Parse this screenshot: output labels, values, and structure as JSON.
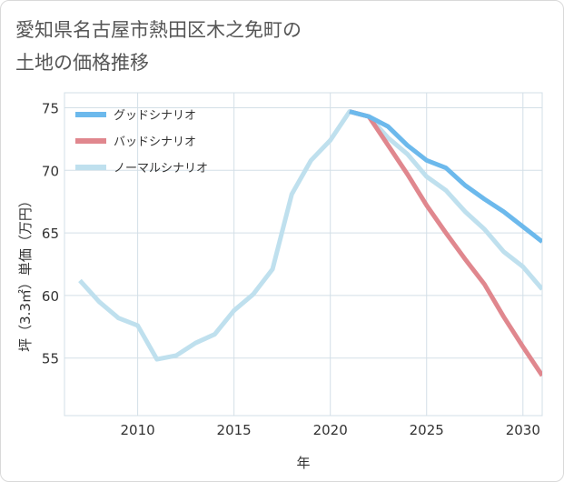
{
  "title": {
    "line1": "愛知県名古屋市熱田区木之免町の",
    "line2": "土地の価格推移"
  },
  "colors": {
    "good": "#6cb9ec",
    "bad": "#e0878e",
    "normal": "#bfe0ee",
    "grid": "#d3dfe7",
    "axis": "#333333"
  },
  "chart_data": {
    "type": "line",
    "xlabel": "年",
    "ylabel": "坪（3.3㎡）単価（万円）",
    "xlim": [
      2006.2,
      2031
    ],
    "ylim": [
      50.4,
      76.2
    ],
    "xticks": [
      2010,
      2015,
      2020,
      2025,
      2030
    ],
    "yticks": [
      55,
      60,
      65,
      70,
      75
    ],
    "grid": true,
    "legend_position": "top-left",
    "series": [
      {
        "name": "グッドシナリオ",
        "color_key": "good",
        "points": [
          [
            2021,
            74.7
          ],
          [
            2022,
            74.3
          ],
          [
            2023,
            73.5
          ],
          [
            2024,
            72.0
          ],
          [
            2025,
            70.8
          ],
          [
            2026,
            70.2
          ],
          [
            2027,
            68.8
          ],
          [
            2028,
            67.7
          ],
          [
            2029,
            66.7
          ],
          [
            2030,
            65.5
          ],
          [
            2031,
            64.3
          ]
        ]
      },
      {
        "name": "バッドシナリオ",
        "color_key": "bad",
        "points": [
          [
            2021,
            74.7
          ],
          [
            2022,
            74.3
          ],
          [
            2023,
            72.0
          ],
          [
            2024,
            69.7
          ],
          [
            2025,
            67.2
          ],
          [
            2026,
            65.0
          ],
          [
            2027,
            62.9
          ],
          [
            2028,
            60.9
          ],
          [
            2029,
            58.3
          ],
          [
            2030,
            55.9
          ],
          [
            2031,
            53.6
          ]
        ]
      },
      {
        "name": "ノーマルシナリオ",
        "color_key": "normal",
        "points": [
          [
            2007,
            61.2
          ],
          [
            2008,
            59.5
          ],
          [
            2009,
            58.2
          ],
          [
            2010,
            57.6
          ],
          [
            2011,
            54.9
          ],
          [
            2012,
            55.2
          ],
          [
            2013,
            56.2
          ],
          [
            2014,
            56.9
          ],
          [
            2015,
            58.8
          ],
          [
            2016,
            60.1
          ],
          [
            2017,
            62.1
          ],
          [
            2018,
            68.1
          ],
          [
            2019,
            70.8
          ],
          [
            2020,
            72.4
          ],
          [
            2021,
            74.7
          ],
          [
            2022,
            74.3
          ],
          [
            2023,
            72.6
          ],
          [
            2024,
            71.3
          ],
          [
            2025,
            69.5
          ],
          [
            2026,
            68.4
          ],
          [
            2027,
            66.7
          ],
          [
            2028,
            65.3
          ],
          [
            2029,
            63.5
          ],
          [
            2030,
            62.3
          ],
          [
            2031,
            60.5
          ]
        ]
      }
    ]
  }
}
